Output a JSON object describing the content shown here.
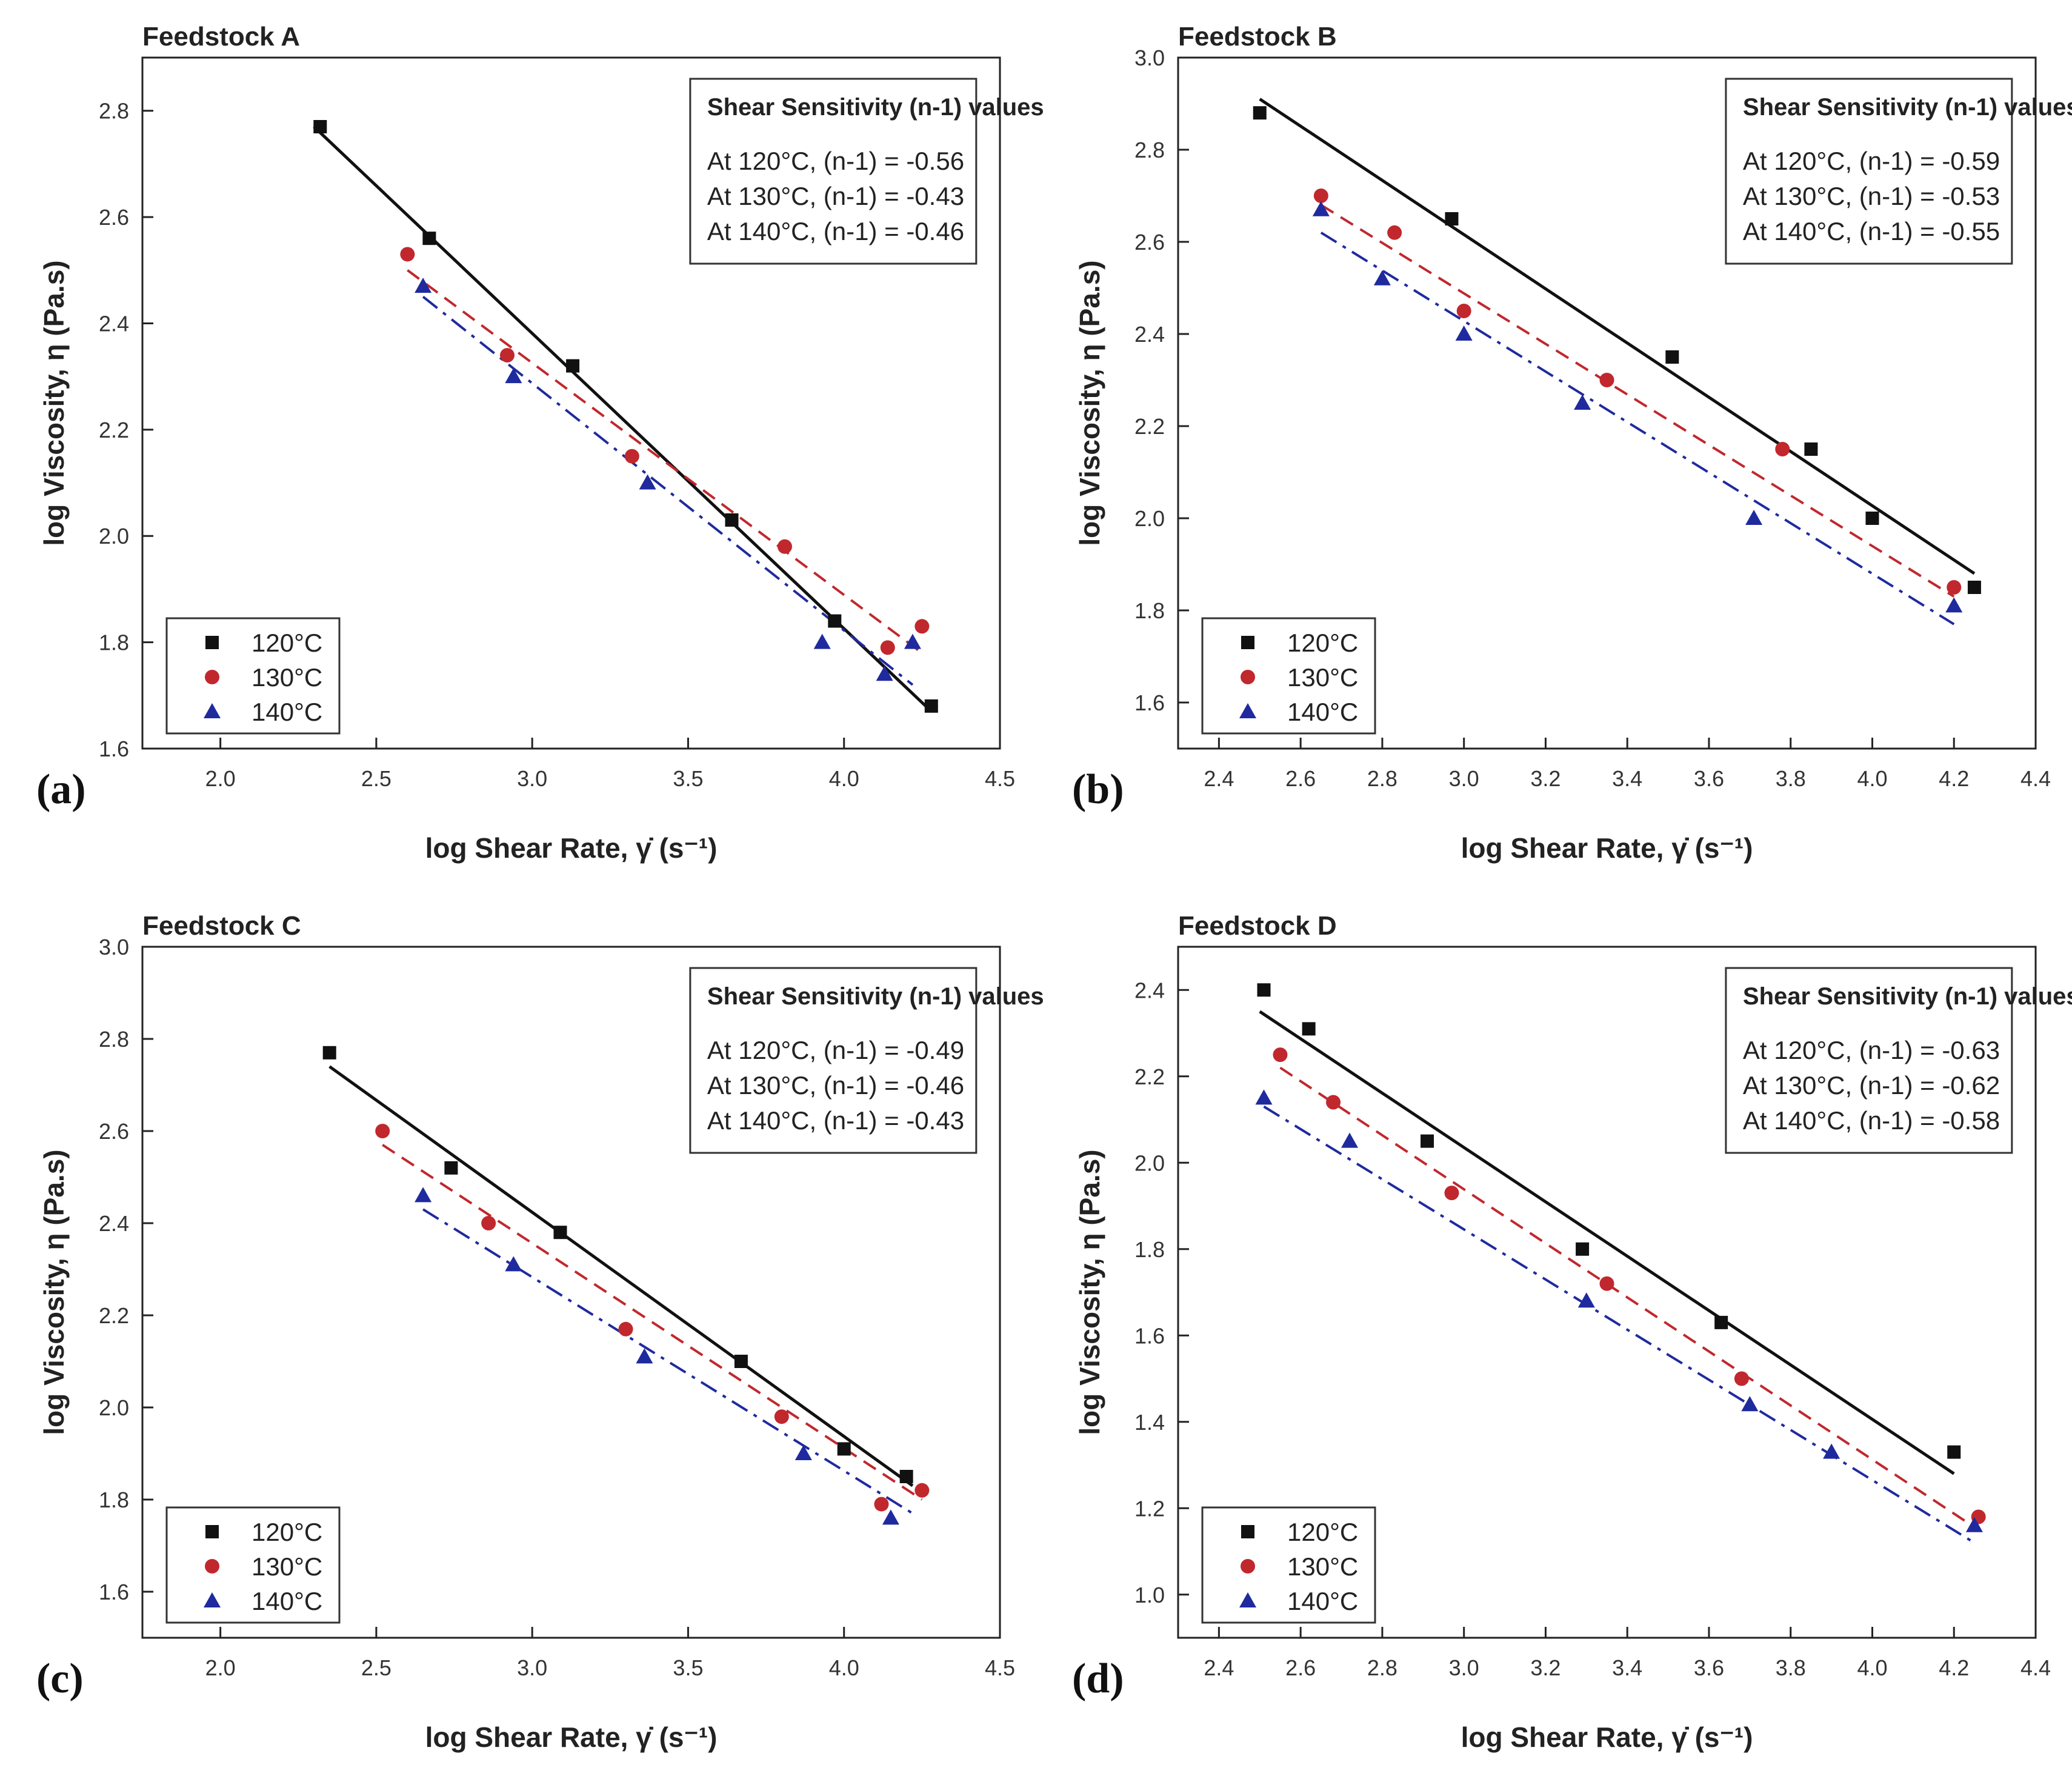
{
  "chart_data": [
    {
      "type": "scatter",
      "panel_label": "(a)",
      "title": "Feedstock A",
      "xlabel": "log Shear Rate, γ̇ (s⁻¹)",
      "ylabel": "log Viscosity, η (Pa.s)",
      "xlim": [
        1.75,
        4.5
      ],
      "ylim": [
        1.6,
        2.9
      ],
      "xticks": [
        "2.0",
        "2.5",
        "3.0",
        "3.5",
        "4.0",
        "4.5"
      ],
      "yticks": [
        "1.6",
        "1.8",
        "2.0",
        "2.2",
        "2.4",
        "2.6",
        "2.8"
      ],
      "legend": "bottom-left",
      "annotation": {
        "title": "Shear Sensitivity (n-1) values",
        "lines": [
          "At 120°C, (n-1) = -0.56",
          "At 130°C, (n-1) = -0.43",
          "At 140°C, (n-1) = -0.46"
        ]
      },
      "series": [
        {
          "name": "120°C",
          "marker": "square",
          "color": "#111111",
          "line": "solid",
          "x": [
            2.32,
            2.67,
            3.13,
            3.64,
            3.97,
            4.28
          ],
          "y": [
            2.77,
            2.56,
            2.32,
            2.03,
            1.84,
            1.68
          ],
          "fit_x": [
            2.3,
            4.28
          ],
          "fit_y": [
            2.77,
            1.67
          ]
        },
        {
          "name": "130°C",
          "marker": "circle",
          "color": "#c0282d",
          "line": "dashed",
          "x": [
            2.6,
            2.92,
            3.32,
            3.81,
            4.14,
            4.25
          ],
          "y": [
            2.53,
            2.34,
            2.15,
            1.98,
            1.79,
            1.83
          ],
          "fit_x": [
            2.6,
            4.25
          ],
          "fit_y": [
            2.5,
            1.78
          ]
        },
        {
          "name": "140°C",
          "marker": "triangle",
          "color": "#1f2a9e",
          "line": "dashdot",
          "x": [
            2.65,
            2.94,
            3.37,
            3.93,
            4.13,
            4.22
          ],
          "y": [
            2.47,
            2.3,
            2.1,
            1.8,
            1.74,
            1.8
          ],
          "fit_x": [
            2.65,
            4.22
          ],
          "fit_y": [
            2.45,
            1.72
          ]
        }
      ]
    },
    {
      "type": "scatter",
      "panel_label": "(b)",
      "title": "Feedstock B",
      "xlabel": "log Shear Rate, γ̇ (s⁻¹)",
      "ylabel": "log Viscosity, η (Pa.s)",
      "xlim": [
        2.3,
        4.4
      ],
      "ylim": [
        1.5,
        3.0
      ],
      "xticks": [
        "2.4",
        "2.6",
        "2.8",
        "3.0",
        "3.2",
        "3.4",
        "3.6",
        "3.8",
        "4.0",
        "4.2",
        "4.4"
      ],
      "yticks": [
        "1.6",
        "1.8",
        "2.0",
        "2.2",
        "2.4",
        "2.6",
        "2.8",
        "3.0"
      ],
      "legend": "bottom-left",
      "annotation": {
        "title": "Shear Sensitivity (n-1) values",
        "lines": [
          "At 120°C, (n-1) = -0.59",
          "At 130°C, (n-1) = -0.53",
          "At 140°C, (n-1) = -0.55"
        ]
      },
      "series": [
        {
          "name": "120°C",
          "marker": "square",
          "color": "#111111",
          "line": "solid",
          "x": [
            2.5,
            2.97,
            3.51,
            3.85,
            4.0,
            4.25
          ],
          "y": [
            2.88,
            2.65,
            2.35,
            2.15,
            2.0,
            1.85
          ],
          "fit_x": [
            2.5,
            4.25
          ],
          "fit_y": [
            2.91,
            1.88
          ]
        },
        {
          "name": "130°C",
          "marker": "circle",
          "color": "#c0282d",
          "line": "dashed",
          "x": [
            2.65,
            2.83,
            3.0,
            3.35,
            3.78,
            4.2
          ],
          "y": [
            2.7,
            2.62,
            2.45,
            2.3,
            2.15,
            1.85
          ],
          "fit_x": [
            2.65,
            4.2
          ],
          "fit_y": [
            2.68,
            1.83
          ]
        },
        {
          "name": "140°C",
          "marker": "triangle",
          "color": "#1f2a9e",
          "line": "dashdot",
          "x": [
            2.65,
            2.8,
            3.0,
            3.29,
            3.71,
            4.2
          ],
          "y": [
            2.67,
            2.52,
            2.4,
            2.25,
            2.0,
            1.81
          ],
          "fit_x": [
            2.65,
            4.2
          ],
          "fit_y": [
            2.62,
            1.77
          ]
        }
      ]
    },
    {
      "type": "scatter",
      "panel_label": "(c)",
      "title": "Feedstock C",
      "xlabel": "log Shear Rate, γ̇ (s⁻¹)",
      "ylabel": "log Viscosity, η (Pa.s)",
      "xlim": [
        1.75,
        4.5
      ],
      "ylim": [
        1.5,
        3.0
      ],
      "xticks": [
        "2.0",
        "2.5",
        "3.0",
        "3.5",
        "4.0",
        "4.5"
      ],
      "yticks": [
        "1.6",
        "1.8",
        "2.0",
        "2.2",
        "2.4",
        "2.6",
        "2.8",
        "3.0"
      ],
      "legend": "bottom-left",
      "annotation": {
        "title": "Shear Sensitivity (n-1) values",
        "lines": [
          "At 120°C, (n-1) = -0.49",
          "At 130°C, (n-1) = -0.46",
          "At 140°C, (n-1) = -0.43"
        ]
      },
      "series": [
        {
          "name": "120°C",
          "marker": "square",
          "color": "#111111",
          "line": "solid",
          "x": [
            2.35,
            2.74,
            3.09,
            3.67,
            4.0,
            4.2
          ],
          "y": [
            2.77,
            2.52,
            2.38,
            2.1,
            1.91,
            1.85
          ],
          "fit_x": [
            2.35,
            4.22
          ],
          "fit_y": [
            2.74,
            1.83
          ]
        },
        {
          "name": "130°C",
          "marker": "circle",
          "color": "#c0282d",
          "line": "dashed",
          "x": [
            2.52,
            2.86,
            3.3,
            3.8,
            4.12,
            4.25
          ],
          "y": [
            2.6,
            2.4,
            2.17,
            1.98,
            1.79,
            1.82
          ],
          "fit_x": [
            2.52,
            4.25
          ],
          "fit_y": [
            2.57,
            1.8
          ]
        },
        {
          "name": "140°C",
          "marker": "triangle",
          "color": "#1f2a9e",
          "line": "dashdot",
          "x": [
            2.65,
            2.94,
            3.36,
            3.87,
            4.15
          ],
          "y": [
            2.46,
            2.31,
            2.11,
            1.9,
            1.76
          ],
          "fit_x": [
            2.65,
            4.22
          ],
          "fit_y": [
            2.43,
            1.77
          ]
        }
      ]
    },
    {
      "type": "scatter",
      "panel_label": "(d)",
      "title": "Feedstock D",
      "xlabel": "log Shear Rate, γ̇ (s⁻¹)",
      "ylabel": "log Viscosity, η (Pa.s)",
      "xlim": [
        2.3,
        4.4
      ],
      "ylim": [
        0.9,
        2.5
      ],
      "xticks": [
        "2.4",
        "2.6",
        "2.8",
        "3.0",
        "3.2",
        "3.4",
        "3.6",
        "3.8",
        "4.0",
        "4.2",
        "4.4"
      ],
      "yticks": [
        "1.0",
        "1.2",
        "1.4",
        "1.6",
        "1.8",
        "2.0",
        "2.2",
        "2.4"
      ],
      "legend": "bottom-left",
      "annotation": {
        "title": "Shear Sensitivity (n-1) values",
        "lines": [
          "At 120°C, (n-1) = -0.63",
          "At 130°C, (n-1) = -0.62",
          "At 140°C, (n-1) = -0.58"
        ]
      },
      "series": [
        {
          "name": "120°C",
          "marker": "square",
          "color": "#111111",
          "line": "solid",
          "x": [
            2.51,
            2.62,
            2.91,
            3.29,
            3.63,
            4.2
          ],
          "y": [
            2.4,
            2.31,
            2.05,
            1.8,
            1.63,
            1.33
          ],
          "fit_x": [
            2.5,
            4.2
          ],
          "fit_y": [
            2.35,
            1.28
          ]
        },
        {
          "name": "130°C",
          "marker": "circle",
          "color": "#c0282d",
          "line": "dashed",
          "x": [
            2.55,
            2.68,
            2.97,
            3.35,
            3.68,
            4.26
          ],
          "y": [
            2.25,
            2.14,
            1.93,
            1.72,
            1.5,
            1.18
          ],
          "fit_x": [
            2.55,
            4.26
          ],
          "fit_y": [
            2.22,
            1.15
          ]
        },
        {
          "name": "140°C",
          "marker": "triangle",
          "color": "#1f2a9e",
          "line": "dashdot",
          "x": [
            2.51,
            2.72,
            3.3,
            3.7,
            3.9,
            4.25
          ],
          "y": [
            2.15,
            2.05,
            1.68,
            1.44,
            1.33,
            1.16
          ],
          "fit_x": [
            2.51,
            4.25
          ],
          "fit_y": [
            2.13,
            1.12
          ]
        }
      ]
    }
  ]
}
